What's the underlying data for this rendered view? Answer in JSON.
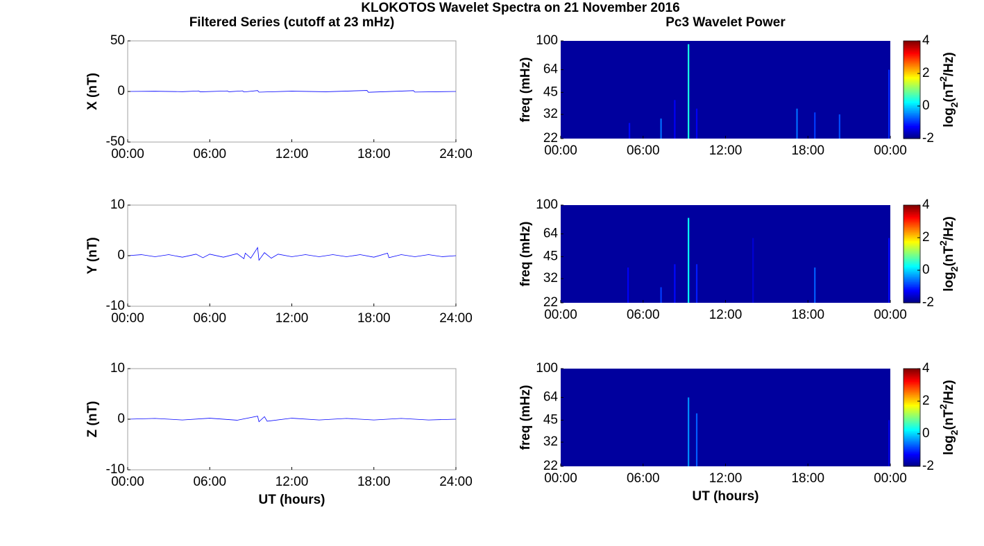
{
  "title": "KLOKOTOS Wavelet Spectra on 21 November 2016",
  "chart_data": [
    {
      "type": "line",
      "title": "Filtered Series (cutoff at 23 mHz)",
      "ylabel": "X (nT)",
      "xlim": [
        0,
        24
      ],
      "xticks": [
        {
          "value": 0,
          "label": "00:00"
        },
        {
          "value": 6,
          "label": "06:00"
        },
        {
          "value": 12,
          "label": "12:00"
        },
        {
          "value": 18,
          "label": "18:00"
        },
        {
          "value": 24,
          "label": "24:00"
        }
      ],
      "ylim": [
        -50,
        50
      ],
      "yticks": [
        -50,
        0,
        50
      ],
      "series": [
        {
          "color": "#0000ff",
          "x": [
            0,
            2,
            4,
            5.2,
            5.3,
            7.3,
            7.4,
            8.4,
            8.5,
            9.5,
            9.6,
            12,
            14.5,
            17.5,
            17.6,
            20.9,
            21,
            24
          ],
          "values": [
            0,
            0.2,
            -0.2,
            0.5,
            -0.4,
            0.5,
            -0.3,
            0.6,
            -0.5,
            0.9,
            -0.7,
            0.3,
            -0.3,
            1,
            -0.8,
            0.8,
            -0.6,
            0
          ]
        }
      ]
    },
    {
      "type": "heatmap",
      "title": "Pc3 Wavelet Power",
      "ylabel": "freq (mHz)",
      "xlim": [
        0,
        24
      ],
      "xticks": [
        {
          "value": 0,
          "label": "00:00"
        },
        {
          "value": 6,
          "label": "06:00"
        },
        {
          "value": 12,
          "label": "12:00"
        },
        {
          "value": 18,
          "label": "18:00"
        },
        {
          "value": 24,
          "label": "00:00"
        }
      ],
      "ylim": [
        22,
        100
      ],
      "yticks": [
        22,
        32,
        45,
        64,
        100
      ],
      "log_y": true,
      "x": [
        5,
        7.3,
        8.3,
        9.3,
        9.9,
        17.2,
        18.5,
        20.3,
        23.9
      ],
      "top": [
        28,
        30,
        40,
        95,
        35,
        35,
        33,
        32,
        64
      ],
      "values": [
        -1.2,
        -0.6,
        -1.3,
        0.4,
        -1.3,
        -0.6,
        -0.9,
        -0.8,
        -1
      ],
      "zlim": [
        -2,
        4
      ],
      "zticks": [
        -2,
        0,
        2,
        4
      ],
      "zlabel": [
        "log",
        "2",
        "(nT",
        "2",
        "/Hz)"
      ],
      "colormap": "jet"
    },
    {
      "type": "line",
      "ylabel": "Y (nT)",
      "xlim": [
        0,
        24
      ],
      "xticks": [
        {
          "value": 0,
          "label": "00:00"
        },
        {
          "value": 6,
          "label": "06:00"
        },
        {
          "value": 12,
          "label": "12:00"
        },
        {
          "value": 18,
          "label": "18:00"
        },
        {
          "value": 24,
          "label": "24:00"
        }
      ],
      "ylim": [
        -10,
        10
      ],
      "yticks": [
        -10,
        0,
        10
      ],
      "series": [
        {
          "color": "#0000ff",
          "x": [
            0,
            1,
            2,
            3,
            4,
            5,
            5.5,
            6,
            7,
            8,
            8.5,
            8.6,
            9,
            9.5,
            9.6,
            10,
            10.5,
            11,
            12,
            13,
            14,
            15,
            16,
            17,
            18,
            19,
            19.1,
            20,
            21,
            22,
            23,
            24
          ],
          "values": [
            0,
            0.2,
            -0.2,
            0.2,
            -0.3,
            0.3,
            -0.4,
            0.3,
            -0.3,
            0.4,
            -0.6,
            0.5,
            -0.5,
            1.6,
            -0.9,
            0.6,
            -0.5,
            0.3,
            -0.2,
            0.2,
            -0.2,
            0.2,
            -0.2,
            0.2,
            -0.3,
            0.5,
            -0.4,
            0.2,
            -0.2,
            0.2,
            -0.2,
            0
          ]
        }
      ]
    },
    {
      "type": "heatmap",
      "ylabel": "freq (mHz)",
      "xlim": [
        0,
        24
      ],
      "xticks": [
        {
          "value": 0,
          "label": "00:00"
        },
        {
          "value": 6,
          "label": "06:00"
        },
        {
          "value": 12,
          "label": "12:00"
        },
        {
          "value": 18,
          "label": "18:00"
        },
        {
          "value": 24,
          "label": "00:00"
        }
      ],
      "ylim": [
        22,
        100
      ],
      "yticks": [
        22,
        32,
        45,
        64,
        100
      ],
      "log_y": true,
      "x": [
        4.9,
        7.3,
        8.3,
        9.3,
        9.9,
        14,
        18.5,
        23.9
      ],
      "top": [
        38,
        28,
        40,
        82,
        40,
        60,
        38,
        60
      ],
      "values": [
        -1.3,
        -0.9,
        -1.2,
        0.3,
        -1.1,
        -1.5,
        -0.7,
        -1.2
      ],
      "zlim": [
        -2,
        4
      ],
      "zticks": [
        -2,
        0,
        2,
        4
      ],
      "zlabel": [
        "log",
        "2",
        "(nT",
        "2",
        "/Hz)"
      ],
      "colormap": "jet"
    },
    {
      "type": "line",
      "ylabel": "Z (nT)",
      "xlabel": "UT (hours)",
      "xlim": [
        0,
        24
      ],
      "xticks": [
        {
          "value": 0,
          "label": "00:00"
        },
        {
          "value": 6,
          "label": "06:00"
        },
        {
          "value": 12,
          "label": "12:00"
        },
        {
          "value": 18,
          "label": "18:00"
        },
        {
          "value": 24,
          "label": "24:00"
        }
      ],
      "ylim": [
        -10,
        10
      ],
      "yticks": [
        -10,
        0,
        10
      ],
      "series": [
        {
          "color": "#0000ff",
          "x": [
            0,
            2,
            4,
            6,
            8,
            9.5,
            9.6,
            10,
            10.2,
            12,
            14,
            16,
            18,
            20,
            22,
            24
          ],
          "values": [
            0,
            0.15,
            -0.15,
            0.2,
            -0.2,
            0.6,
            -0.5,
            0.5,
            -0.4,
            0.2,
            -0.15,
            0.15,
            -0.15,
            0.15,
            -0.15,
            0
          ]
        }
      ]
    },
    {
      "type": "heatmap",
      "ylabel": "freq (mHz)",
      "xlabel": "UT (hours)",
      "xlim": [
        0,
        24
      ],
      "xticks": [
        {
          "value": 0,
          "label": "00:00"
        },
        {
          "value": 6,
          "label": "06:00"
        },
        {
          "value": 12,
          "label": "12:00"
        },
        {
          "value": 18,
          "label": "18:00"
        },
        {
          "value": 24,
          "label": "00:00"
        }
      ],
      "ylim": [
        22,
        100
      ],
      "yticks": [
        22,
        32,
        45,
        64,
        100
      ],
      "log_y": true,
      "x": [
        9.3,
        9.9,
        23.9
      ],
      "top": [
        64,
        50,
        45
      ],
      "values": [
        -0.4,
        -0.7,
        -1.4
      ],
      "zlim": [
        -2,
        4
      ],
      "zticks": [
        -2,
        0,
        2,
        4
      ],
      "zlabel": [
        "log",
        "2",
        "(nT",
        "2",
        "/Hz)"
      ],
      "colormap": "jet"
    }
  ]
}
